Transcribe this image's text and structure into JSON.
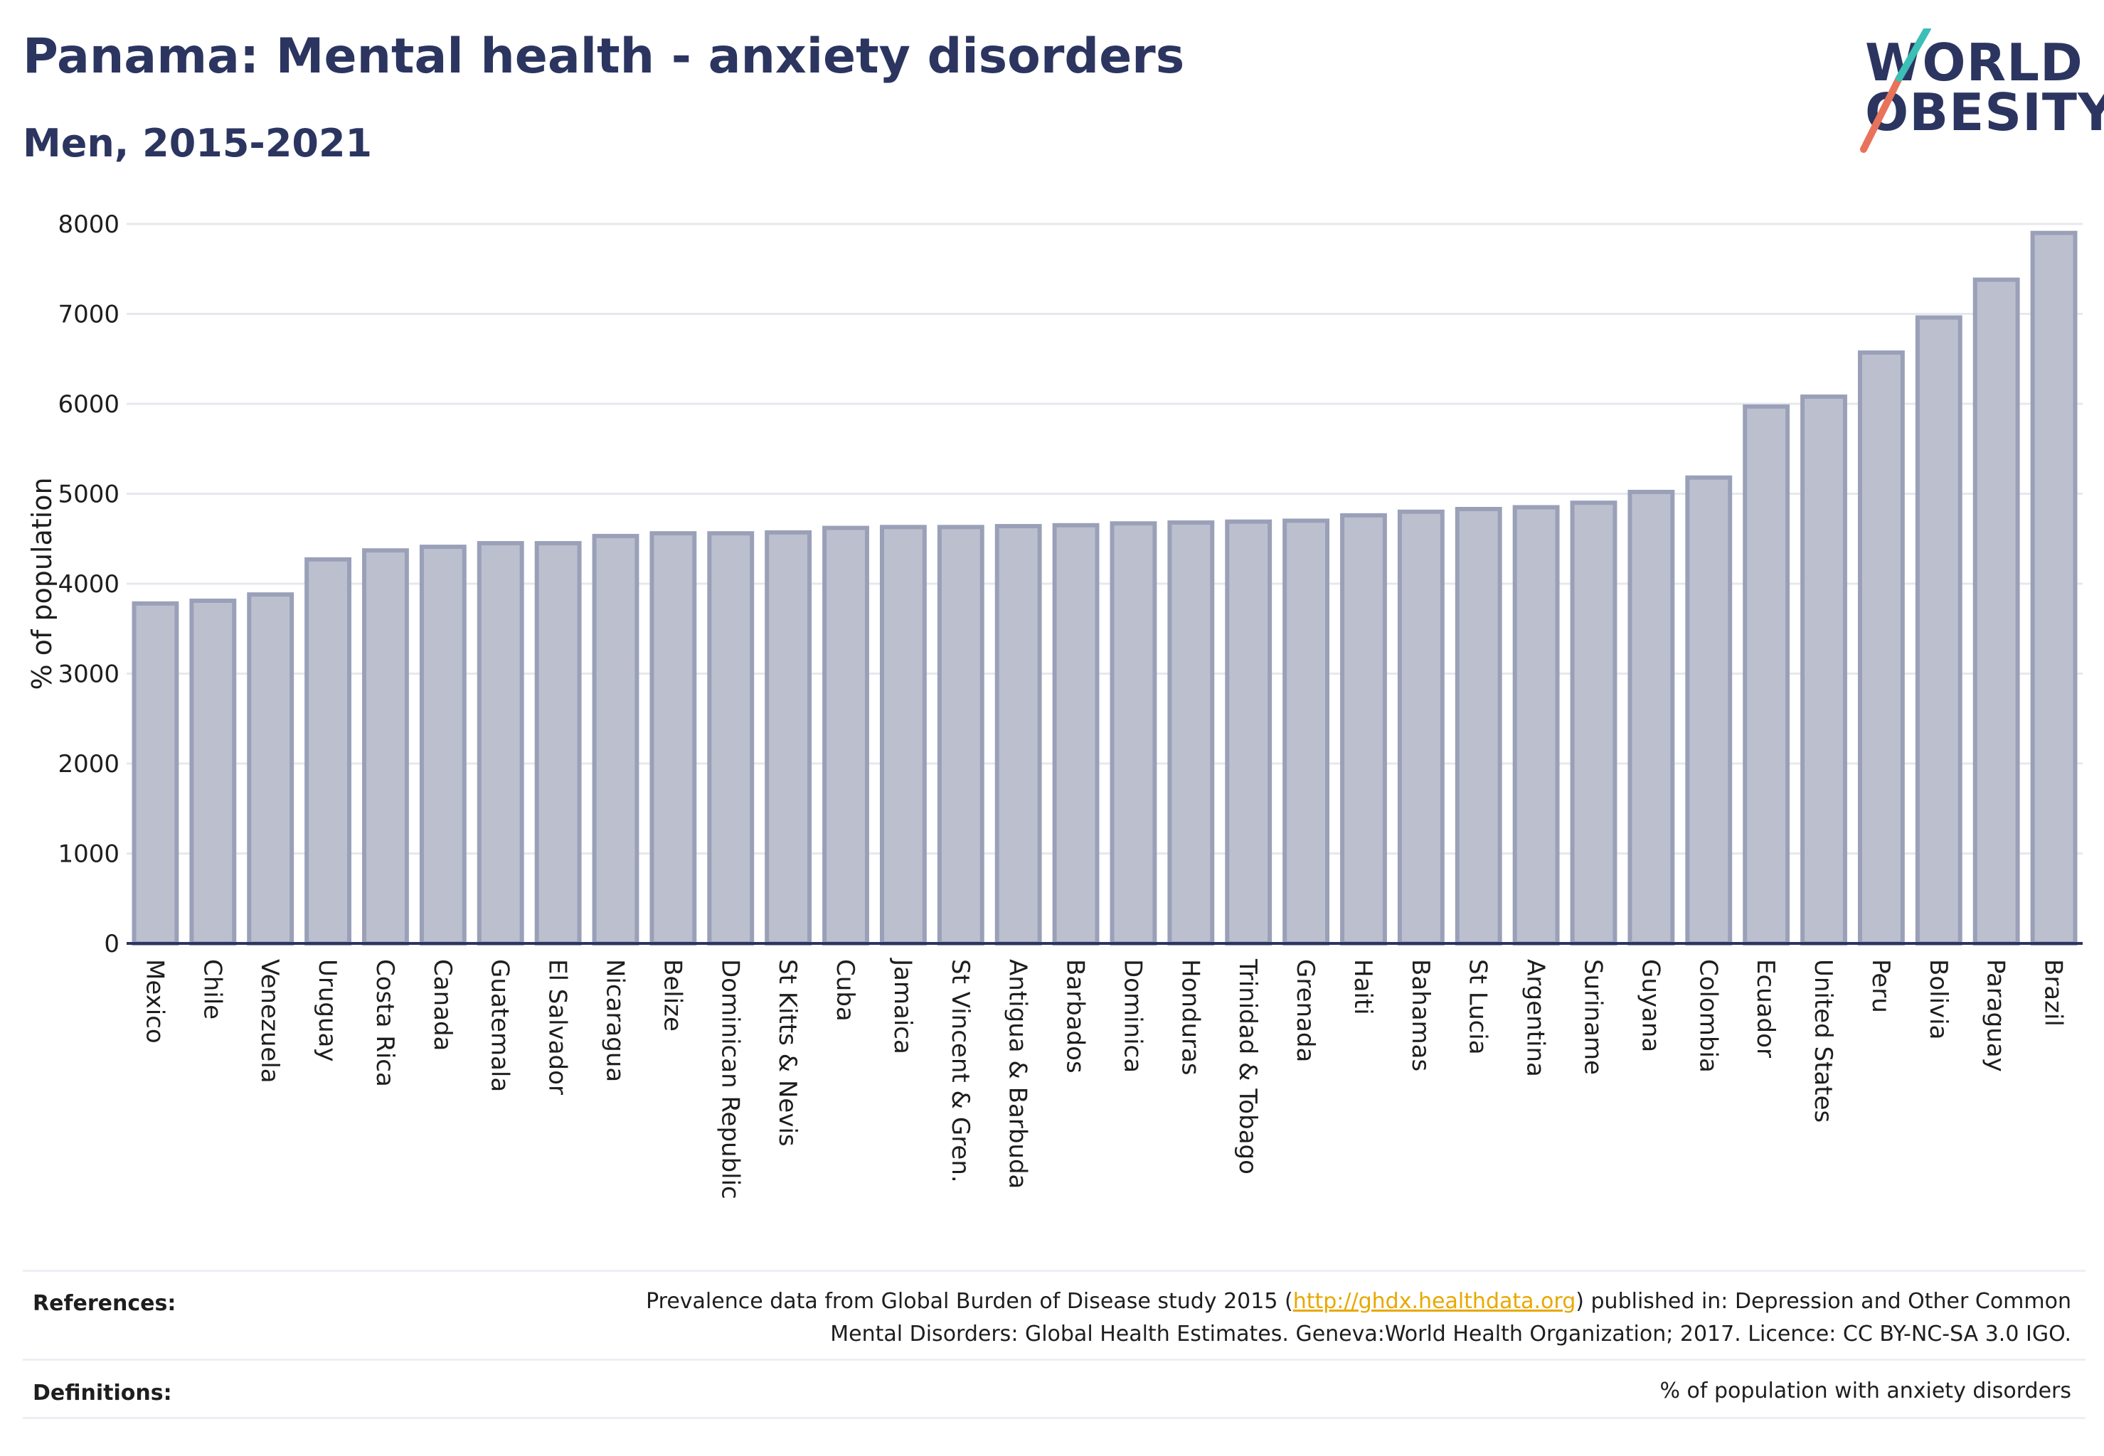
{
  "header": {
    "title": "Panama: Mental health - anxiety disorders",
    "subtitle": "Men, 2015-2021"
  },
  "logo": {
    "line1": "WORLD",
    "line2": "OBESITY"
  },
  "colors": {
    "title": "#2b3560",
    "bar_fill": "#bcc0ce",
    "bar_stroke": "#9aa0b8",
    "grid": "#e6e8ee",
    "axis": "#2b3560",
    "logo_slash_teal": "#3bbfb6",
    "logo_slash_coral": "#e8735a",
    "link": "#e8a800"
  },
  "chart_data": {
    "type": "bar",
    "title": "",
    "xlabel": "",
    "ylabel": "% of population",
    "ylim": [
      0,
      8000
    ],
    "yticks": [
      0,
      1000,
      2000,
      3000,
      4000,
      5000,
      6000,
      7000,
      8000
    ],
    "grid": true,
    "legend": "none",
    "categories": [
      "Mexico",
      "Chile",
      "Venezuela",
      "Uruguay",
      "Costa Rica",
      "Canada",
      "Guatemala",
      "El Salvador",
      "Nicaragua",
      "Belize",
      "Dominican Republic",
      "St Kitts & Nevis",
      "Cuba",
      "Jamaica",
      "St Vincent & Gren.",
      "Antigua & Barbuda",
      "Barbados",
      "Dominica",
      "Honduras",
      "Trinidad & Tobago",
      "Grenada",
      "Haiti",
      "Bahamas",
      "St Lucia",
      "Argentina",
      "Suriname",
      "Guyana",
      "Colombia",
      "Ecuador",
      "United States",
      "Peru",
      "Bolivia",
      "Paraguay",
      "Brazil"
    ],
    "values": [
      3780,
      3810,
      3880,
      4270,
      4370,
      4410,
      4450,
      4450,
      4530,
      4560,
      4560,
      4570,
      4620,
      4630,
      4630,
      4640,
      4650,
      4670,
      4680,
      4690,
      4700,
      4760,
      4800,
      4830,
      4850,
      4900,
      5020,
      5180,
      5970,
      6080,
      6570,
      6960,
      7380,
      7900
    ]
  },
  "footer": {
    "references_label": "References:",
    "references_line1_pre": "Prevalence data from Global Burden of Disease study 2015 (",
    "references_link": "http://ghdx.healthdata.org",
    "references_line1_post": ") published in: Depression and Other Common",
    "references_line2": "Mental Disorders: Global Health Estimates. Geneva:World Health Organization; 2017. Licence: CC BY-NC-SA 3.0 IGO.",
    "definitions_label": "Definitions:",
    "definitions_text": "% of population with anxiety disorders"
  }
}
